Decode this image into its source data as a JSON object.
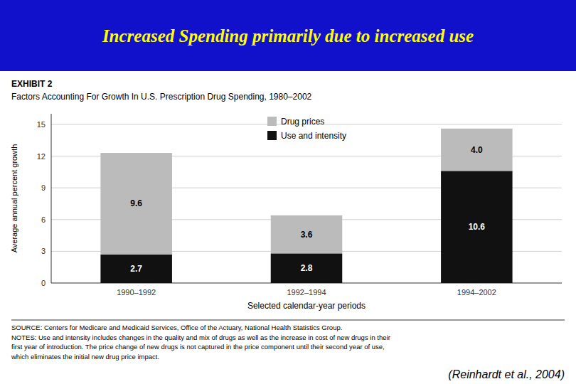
{
  "chart_data": {
    "type": "bar",
    "stacked": true,
    "title": "Increased Spending primarily due to increased use",
    "subtitle": "Factors Accounting For Growth In U.S. Prescription Drug Spending, 1980–2002",
    "x_label": "Selected calendar-year periods",
    "y_label": "Average annual percent growth",
    "categories": [
      "1990–1992",
      "1992–1994",
      "1994–2002"
    ],
    "series": [
      {
        "name": "Use and intensity",
        "color": "#111111",
        "values": [
          2.7,
          2.8,
          10.6
        ]
      },
      {
        "name": "Drug prices",
        "color": "#BBBBBB",
        "values": [
          9.6,
          3.6,
          4.0
        ],
        "value_labels": [
          "9.6",
          "3.6",
          "4.0"
        ]
      }
    ],
    "ylim": [
      0,
      16
    ],
    "yticks": [
      0,
      3,
      6,
      9,
      12,
      15
    ],
    "grid": true,
    "legend": "top",
    "data_labels": true,
    "annotations": [
      "EXHIBIT 2",
      "SOURCE: Centers for Medicare and Medicaid Services, Office of the Actuary, National Health Statistics Group.",
      "NOTES: Use and intensity includes changes in the quality and mix of drugs as well as the increase in cost of new drugs in their",
      "first year of introduction. The price change of new drugs is not captured in the price component until their second year of use,",
      "which eliminates the initial new drug price impact.",
      "(Reinhardt et al., 2004)"
    ]
  }
}
